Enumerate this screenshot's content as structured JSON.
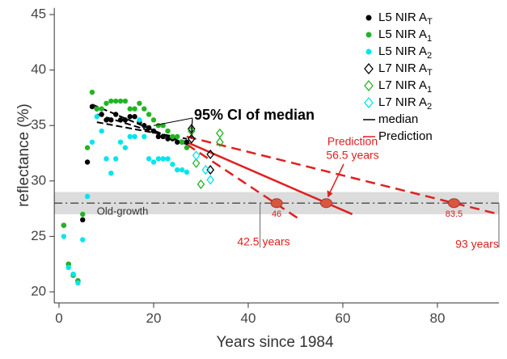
{
  "chart_data": {
    "type": "scatter",
    "xlabel": "Years since 1984",
    "ylabel": "reflectance (%)",
    "xlim": [
      -1,
      93
    ],
    "ylim": [
      19,
      45.6
    ],
    "xticks": [
      0,
      20,
      40,
      60,
      80
    ],
    "yticks": [
      20,
      25,
      30,
      35,
      40,
      45
    ],
    "series": [
      {
        "name": "L5 NIR A",
        "sub": "T",
        "color": "#000000",
        "marker": "dot",
        "x": [
          1,
          2,
          3,
          4,
          5,
          6,
          7,
          8,
          9,
          10,
          11,
          12,
          13,
          14,
          15,
          16,
          17,
          18,
          19,
          20,
          21,
          22,
          23,
          24,
          25,
          26,
          27
        ],
        "values": [
          26,
          22.5,
          21.5,
          21,
          26.5,
          31.7,
          36.7,
          36.5,
          36,
          35.5,
          35.5,
          36,
          35.5,
          35.5,
          35.8,
          35.8,
          35.3,
          35,
          34.8,
          34.5,
          34,
          34,
          33.8,
          33.8,
          33.5,
          33.5,
          33.5
        ]
      },
      {
        "name": "L5 NIR A",
        "sub": "1",
        "color": "#22b522",
        "marker": "dot",
        "x": [
          1,
          2,
          3,
          4,
          5,
          6,
          7,
          8,
          9,
          10,
          11,
          12,
          13,
          14,
          15,
          16,
          17,
          18,
          19,
          20,
          21,
          22,
          23,
          24,
          25,
          26,
          27
        ],
        "values": [
          26,
          22.5,
          21.5,
          21,
          27,
          33,
          38,
          36.5,
          36.5,
          37,
          37.2,
          37.2,
          37.2,
          37.2,
          36.5,
          36.5,
          37,
          36.5,
          36,
          35.5,
          35,
          35,
          34.5,
          34,
          34,
          33.5,
          33
        ]
      },
      {
        "name": "L5 NIR A",
        "sub": "2",
        "color": "#00e5ee",
        "marker": "dot",
        "x": [
          1,
          2,
          3,
          4,
          5,
          6,
          7,
          8,
          9,
          10,
          11,
          12,
          13,
          14,
          15,
          16,
          17,
          18,
          19,
          20,
          21,
          22,
          23,
          24,
          25,
          26,
          27
        ],
        "values": [
          25,
          22.2,
          21.6,
          20.8,
          24.7,
          28.6,
          33.5,
          35.8,
          34.5,
          32,
          30.7,
          32,
          33.5,
          33,
          34,
          34,
          35.5,
          34,
          32,
          31.7,
          32,
          32,
          32,
          31.5,
          31,
          31,
          30.8
        ]
      },
      {
        "name": "L7 NIR A",
        "sub": "T",
        "color": "#000000",
        "marker": "diamond",
        "x": [
          28,
          28,
          32,
          32
        ],
        "values": [
          34.7,
          33.8,
          32.4,
          31
        ]
      },
      {
        "name": "L7 NIR A",
        "sub": "1",
        "color": "#22b522",
        "marker": "diamond",
        "x": [
          28,
          29,
          30,
          34,
          34
        ],
        "values": [
          34.5,
          31.6,
          29.7,
          34.3,
          33.5
        ]
      },
      {
        "name": "L7 NIR A",
        "sub": "2",
        "color": "#00e5ee",
        "marker": "diamond",
        "x": [
          29,
          31,
          32
        ],
        "values": [
          32.3,
          31,
          30.1
        ]
      }
    ],
    "lines": [
      {
        "name": "median",
        "color": "#000000",
        "segments": [
          {
            "x": [
              7,
              27
            ],
            "values": [
              36.9,
              33.3
            ]
          },
          {
            "x": [
              8,
              27
            ],
            "values": [
              36,
              33.5
            ]
          },
          {
            "x": [
              8,
              27
            ],
            "values": [
              35.3,
              33.8
            ]
          }
        ]
      },
      {
        "name": "Prediction",
        "color": "#e02020",
        "segments": [
          {
            "x": [
              27,
              62
            ],
            "values": [
              33.5,
              27
            ]
          },
          {
            "x": [
              27,
              51
            ],
            "values": [
              33.3,
              26.5
            ]
          },
          {
            "x": [
              27,
              93
            ],
            "values": [
              34,
              27
            ]
          }
        ]
      }
    ],
    "band": {
      "ylim": [
        27,
        29
      ],
      "y": 28,
      "label": "Old-growth"
    },
    "predictions": {
      "x": [
        46,
        56.5,
        83.5
      ],
      "y": [
        28,
        28,
        28
      ]
    },
    "cutoffs": {
      "x": [
        42.5,
        93
      ]
    },
    "annotations": [
      "95% CI of median",
      "Prediction",
      "56.5 years",
      "42.5 years",
      "93 years"
    ]
  }
}
